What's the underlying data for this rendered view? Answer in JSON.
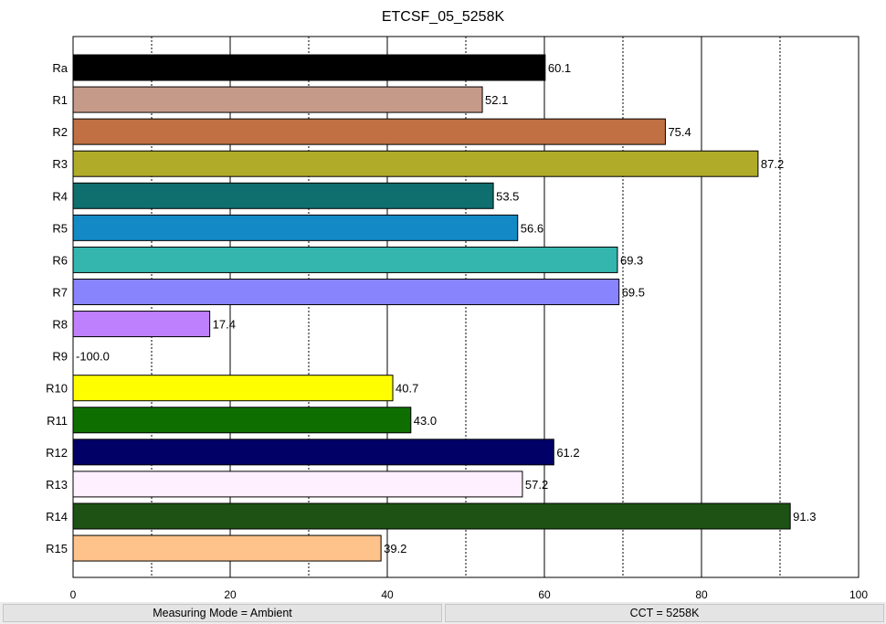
{
  "chart_data": {
    "type": "bar",
    "orientation": "horizontal",
    "title": "ETCSF_05_5258K",
    "categories": [
      "Ra",
      "R1",
      "R2",
      "R3",
      "R4",
      "R5",
      "R6",
      "R7",
      "R8",
      "R9",
      "R10",
      "R11",
      "R12",
      "R13",
      "R14",
      "R15"
    ],
    "values": [
      60.1,
      52.1,
      75.4,
      87.2,
      53.5,
      56.6,
      69.3,
      69.5,
      17.4,
      -100.0,
      40.7,
      43.0,
      61.2,
      57.2,
      91.3,
      39.2
    ],
    "value_labels": [
      "60.1",
      "52.1",
      "75.4",
      "87.2",
      "53.5",
      "56.6",
      "69.3",
      "69.5",
      "17.4",
      "-100.0",
      "40.7",
      "43.0",
      "61.2",
      "57.2",
      "91.3",
      "39.2"
    ],
    "colors": [
      "#000000",
      "#c69a89",
      "#c07042",
      "#b0ac2a",
      "#0f6e6e",
      "#138ac6",
      "#34b6ae",
      "#8884fe",
      "#bf80fd",
      "#ffffff",
      "#fefe00",
      "#0f6e00",
      "#000066",
      "#fff0ff",
      "#1d5214",
      "#fec38a"
    ],
    "xlim": [
      0,
      100
    ],
    "xticks": [
      0,
      20,
      40,
      60,
      80,
      100
    ],
    "xtick_labels": [
      "0",
      "20",
      "40",
      "60",
      "80",
      "100"
    ],
    "grid": {
      "major_step": 20,
      "minor_step": 10,
      "axis": "x"
    },
    "legend": "none"
  },
  "status": {
    "left": "Measuring Mode = Ambient",
    "right": "CCT = 5258K"
  }
}
